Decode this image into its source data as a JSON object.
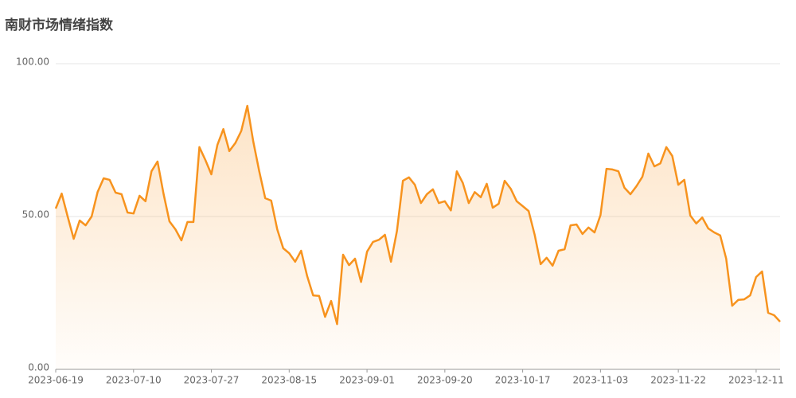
{
  "chart_data": {
    "type": "line",
    "title": "南财市场情绪指数",
    "categories": [
      "2023-06-19",
      null,
      null,
      null,
      null,
      null,
      null,
      null,
      null,
      null,
      null,
      null,
      null,
      "2023-07-10",
      null,
      null,
      null,
      null,
      null,
      null,
      null,
      null,
      null,
      null,
      null,
      null,
      "2023-07-27",
      null,
      null,
      null,
      null,
      null,
      null,
      null,
      null,
      null,
      null,
      null,
      null,
      "2023-08-15",
      null,
      null,
      null,
      null,
      null,
      null,
      null,
      null,
      null,
      null,
      null,
      null,
      "2023-09-01",
      null,
      null,
      null,
      null,
      null,
      null,
      null,
      null,
      null,
      null,
      null,
      null,
      "2023-09-20",
      null,
      null,
      null,
      null,
      null,
      null,
      null,
      null,
      null,
      null,
      null,
      null,
      "2023-10-17",
      null,
      null,
      null,
      null,
      null,
      null,
      null,
      null,
      null,
      null,
      null,
      null,
      "2023-11-03",
      null,
      null,
      null,
      null,
      null,
      null,
      null,
      null,
      null,
      null,
      null,
      null,
      "2023-11-22",
      null,
      null,
      null,
      null,
      null,
      null,
      null,
      null,
      null,
      null,
      null,
      null,
      "2023-12-11",
      null,
      null,
      null,
      null
    ],
    "series": [
      {
        "color": "#f7931e",
        "values": [
          52.6,
          57.5,
          50,
          42.7,
          48.7,
          47.1,
          50,
          58,
          62.5,
          62,
          57.8,
          57.3,
          51.3,
          51,
          56.8,
          55,
          64.8,
          68,
          57.5,
          48.4,
          45.8,
          42.2,
          48.2,
          48.2,
          72.7,
          68.5,
          63.8,
          73.4,
          78.6,
          71.4,
          74,
          78,
          86.2,
          74.5,
          64.8,
          56,
          55.2,
          45.8,
          39.6,
          38,
          35.2,
          38.8,
          30.5,
          24.2,
          24,
          17.2,
          22.4,
          14.8,
          37.5,
          34.1,
          36.2,
          28.6,
          38.5,
          41.7,
          42.4,
          44,
          35.2,
          45.3,
          61.7,
          62.8,
          60.4,
          54.4,
          57.3,
          58.9,
          54.4,
          55,
          52,
          64.8,
          61,
          54.4,
          58,
          56.3,
          60.7,
          52.9,
          54.2,
          61.7,
          59.1,
          55,
          53.4,
          51.8,
          44,
          34.4,
          36.5,
          33.9,
          38.8,
          39.3,
          47.1,
          47.4,
          44.3,
          46.4,
          44.8,
          50.5,
          65.6,
          65.4,
          64.8,
          59.4,
          57.3,
          59.9,
          63,
          70.6,
          66.4,
          67.4,
          72.7,
          69.8,
          60.4,
          62,
          50.3,
          47.7,
          49.7,
          46.1,
          44.8,
          43.8,
          36.2,
          20.8,
          22.7,
          22.9,
          24.2,
          30.2,
          32,
          18.5,
          17.7,
          15.6
        ]
      }
    ],
    "ylim": [
      0,
      100
    ],
    "yticks": [
      {
        "value": 0,
        "label": "0.00"
      },
      {
        "value": 50,
        "label": "50.00"
      },
      {
        "value": 100,
        "label": "100.00"
      }
    ],
    "grid": true
  }
}
